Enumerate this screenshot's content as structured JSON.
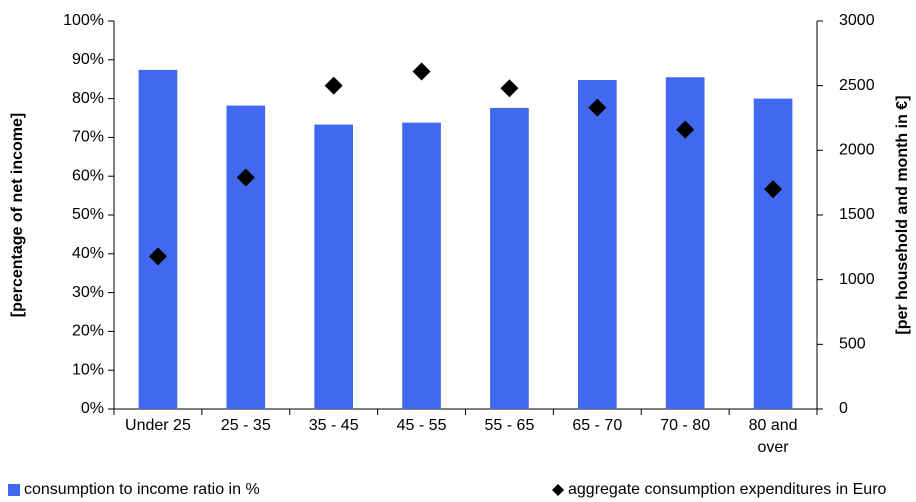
{
  "chart_data": {
    "type": "bar-scatter",
    "categories": [
      "Under 25",
      "25 - 35",
      "35 - 45",
      "45 - 55",
      "55 - 65",
      "65 - 70",
      "70 - 80",
      "80 and over"
    ],
    "ylabel": "[percentage of net income]",
    "y2label": "[per household and month in €]",
    "ylim": [
      0,
      100
    ],
    "yticks": [
      {
        "value": 0,
        "label": "0%"
      },
      {
        "value": 10,
        "label": "10%"
      },
      {
        "value": 20,
        "label": "20%"
      },
      {
        "value": 30,
        "label": "30%"
      },
      {
        "value": 40,
        "label": "40%"
      },
      {
        "value": 50,
        "label": "50%"
      },
      {
        "value": 60,
        "label": "60%"
      },
      {
        "value": 70,
        "label": "70%"
      },
      {
        "value": 80,
        "label": "80%"
      },
      {
        "value": 90,
        "label": "90%"
      },
      {
        "value": 100,
        "label": "100%"
      }
    ],
    "y2lim": [
      0,
      3000
    ],
    "y2ticks": [
      0,
      500,
      1000,
      1500,
      2000,
      2500,
      3000
    ],
    "series": [
      {
        "name": "consumption to income ratio in %",
        "color": "#4169f0",
        "kind": "bar",
        "values": [
          87.4,
          78.2,
          73.3,
          73.8,
          77.6,
          84.8,
          85.5,
          80
        ]
      },
      {
        "name": "aggregate consumption expenditures in Euro",
        "color": "#000000",
        "kind": "diamond",
        "axis": "y2",
        "values": [
          1180,
          1790,
          2500,
          2610,
          2480,
          2330,
          2160,
          1700
        ]
      }
    ]
  }
}
